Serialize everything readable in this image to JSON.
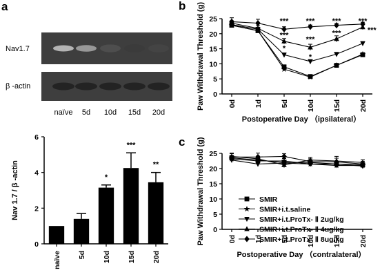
{
  "panels": {
    "a_label": "a",
    "b_label": "b",
    "c_label": "c"
  },
  "blot": {
    "row1_label": "Nav1.7",
    "row2_label": "β -actin",
    "lanes": [
      "naïve",
      "5d",
      "10d",
      "15d",
      "20d"
    ],
    "nav_intensity": [
      0.2,
      0.35,
      0.75,
      0.85,
      0.8
    ],
    "actin_intensity": [
      0.95,
      0.95,
      0.95,
      0.95,
      0.95
    ]
  },
  "chart_data": [
    {
      "id": "a-bar",
      "type": "bar",
      "categories": [
        "naïve",
        "5d",
        "10d",
        "15d",
        "20d"
      ],
      "values": [
        1.0,
        1.4,
        3.15,
        4.25,
        3.45
      ],
      "errors": [
        0,
        0.3,
        0.15,
        0.85,
        0.55
      ],
      "annotations": [
        "",
        "",
        "*",
        "***",
        "**"
      ],
      "ylabel": "Nav 1.7 / β -actin",
      "ylim": [
        0,
        6
      ],
      "yticks": [
        0,
        2,
        4,
        6
      ],
      "bar_color": "#000000"
    },
    {
      "id": "b-line",
      "type": "line",
      "x": [
        "0d",
        "1d",
        "5d",
        "10d",
        "15d",
        "20d"
      ],
      "xlabel": "Postoperative Day （ipsilateral）",
      "ylabel": "Paw Withdrawal Threshold (g)",
      "ylim": [
        0,
        25
      ],
      "yticks": [
        0,
        5,
        10,
        15,
        20,
        25
      ],
      "series": [
        {
          "marker": "square",
          "values": [
            22.8,
            21.0,
            9.0,
            5.8,
            9.5,
            13.0
          ],
          "errors": [
            0.5,
            0.5,
            0.5,
            0.4,
            0.6,
            0.6
          ]
        },
        {
          "marker": "star",
          "values": [
            22.8,
            21.0,
            8.2,
            5.6,
            9.5,
            13.2
          ],
          "errors": [
            0.5,
            0.5,
            0.4,
            0.5,
            0.5,
            0.5
          ]
        },
        {
          "marker": "tri-down",
          "values": [
            23.0,
            21.5,
            13.0,
            10.8,
            13.2,
            16.8
          ],
          "errors": [
            0.6,
            0.6,
            0.6,
            0.6,
            0.6,
            0.6
          ]
        },
        {
          "marker": "tri-up",
          "values": [
            23.5,
            21.8,
            17.5,
            15.5,
            18.3,
            22.2
          ],
          "errors": [
            0.8,
            0.8,
            0.9,
            1.0,
            1.0,
            0.8
          ]
        },
        {
          "marker": "diamond",
          "values": [
            24.0,
            23.5,
            21.5,
            22.3,
            22.8,
            23.2
          ],
          "errors": [
            1.3,
            1.3,
            0.8,
            0.6,
            0.6,
            0.6
          ]
        }
      ],
      "annotations": [
        {
          "x": 2,
          "y": 24.3,
          "text": "***"
        },
        {
          "x": 2,
          "y": 19.6,
          "text": "***"
        },
        {
          "x": 2,
          "y": 15.2,
          "text": "*"
        },
        {
          "x": 3,
          "y": 24.3,
          "text": "***"
        },
        {
          "x": 3,
          "y": 18.2,
          "text": "***"
        },
        {
          "x": 3,
          "y": 12.4,
          "text": "*"
        },
        {
          "x": 4,
          "y": 24.3,
          "text": "***"
        },
        {
          "x": 4,
          "y": 20.3,
          "text": "***"
        },
        {
          "x": 5,
          "y": 24.3,
          "text": "***"
        },
        {
          "x": 5.35,
          "y": 21.3,
          "text": "***"
        }
      ]
    },
    {
      "id": "c-line",
      "type": "line",
      "x": [
        "0d",
        "1d",
        "5d",
        "10d",
        "15d",
        "20d"
      ],
      "xlabel": "Postoperative Day （contralateral）",
      "ylabel": "Paw Withdrawal Threshold (g)",
      "ylim": [
        0,
        25
      ],
      "yticks": [
        0,
        5,
        10,
        15,
        20,
        25
      ],
      "series": [
        {
          "name": "SMIR",
          "marker": "square",
          "values": [
            23.5,
            22.8,
            22.0,
            22.0,
            21.5,
            21.2
          ],
          "errors": [
            0.8,
            0.8,
            0.8,
            0.8,
            0.8,
            0.8
          ]
        },
        {
          "name": "SMIR+i.t.saline",
          "marker": "star",
          "values": [
            23.2,
            22.5,
            22.5,
            21.5,
            21.0,
            21.0
          ],
          "errors": [
            0.8,
            0.8,
            0.8,
            0.8,
            0.8,
            0.8
          ]
        },
        {
          "name": "SMIR+i.t.ProTx- Ⅱ  2ug/kg",
          "marker": "tri-down",
          "values": [
            22.8,
            21.5,
            21.8,
            21.5,
            21.5,
            20.8
          ],
          "errors": [
            0.8,
            0.8,
            0.8,
            0.8,
            0.8,
            0.8
          ]
        },
        {
          "name": "SMIR+i.t.ProTx- Ⅱ  4ug/kg",
          "marker": "tri-up",
          "values": [
            24.0,
            23.2,
            21.2,
            22.8,
            22.5,
            22.0
          ],
          "errors": [
            0.9,
            0.9,
            0.9,
            0.9,
            1.5,
            0.9
          ]
        },
        {
          "name": "SMIR+i.t.ProTx- Ⅱ  8ug/kg",
          "marker": "diamond",
          "values": [
            23.8,
            23.8,
            24.0,
            22.3,
            22.2,
            21.5
          ],
          "errors": [
            1.3,
            1.3,
            0.9,
            0.9,
            1.2,
            0.9
          ]
        }
      ],
      "legend_position": "inside-lower-right"
    }
  ]
}
